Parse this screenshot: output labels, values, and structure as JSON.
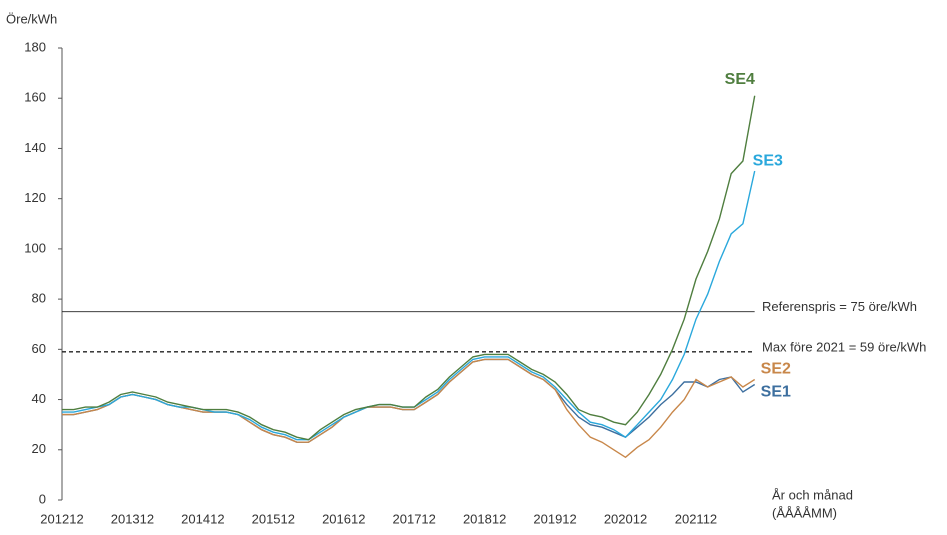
{
  "chart_data": {
    "type": "line",
    "ylabel": "Öre/kWh",
    "xlabel": [
      "År och månad",
      "(ÅÅÅÅMM)"
    ],
    "categories": [
      "201212",
      null,
      null,
      null,
      null,
      null,
      "201312",
      null,
      null,
      null,
      null,
      null,
      "201412",
      null,
      null,
      null,
      null,
      null,
      "201512",
      null,
      null,
      null,
      null,
      null,
      "201612",
      null,
      null,
      null,
      null,
      null,
      "201712",
      null,
      null,
      null,
      null,
      null,
      "201812",
      null,
      null,
      null,
      null,
      null,
      "201912",
      null,
      null,
      null,
      null,
      null,
      "202012",
      null,
      null,
      null,
      null,
      null,
      "202112",
      null,
      null,
      null,
      null,
      null
    ],
    "ylim": [
      0,
      180
    ],
    "yticks": [
      0,
      20,
      40,
      60,
      80,
      100,
      120,
      140,
      160,
      180
    ],
    "reference_lines": [
      {
        "value": 75,
        "label": "Referenspris = 75 öre/kWh",
        "style": "solid"
      },
      {
        "value": 59,
        "label": "Max före 2021 = 59 öre/kWh",
        "style": "dashed"
      }
    ],
    "series": [
      {
        "name": "SE1",
        "color": "#3d6f9f",
        "values": [
          34,
          34,
          35,
          36,
          38,
          41,
          42,
          41,
          40,
          38,
          37,
          36,
          35,
          35,
          35,
          34,
          31,
          28,
          26,
          25,
          23,
          23,
          26,
          29,
          33,
          35,
          37,
          37,
          37,
          36,
          36,
          39,
          42,
          47,
          51,
          55,
          56,
          56,
          56,
          53,
          50,
          48,
          44,
          38,
          33,
          30,
          29,
          27,
          25,
          29,
          33,
          38,
          42,
          47,
          47,
          45,
          48,
          49,
          43,
          46
        ]
      },
      {
        "name": "SE2",
        "color": "#c8874a",
        "values": [
          34,
          34,
          35,
          36,
          38,
          41,
          42,
          41,
          40,
          38,
          37,
          36,
          35,
          35,
          35,
          34,
          31,
          28,
          26,
          25,
          23,
          23,
          26,
          29,
          33,
          35,
          37,
          37,
          37,
          36,
          36,
          39,
          42,
          47,
          51,
          55,
          56,
          56,
          56,
          53,
          50,
          48,
          44,
          36,
          30,
          25,
          23,
          20,
          17,
          21,
          24,
          29,
          35,
          40,
          48,
          45,
          47,
          49,
          45,
          48
        ]
      },
      {
        "name": "SE3",
        "color": "#2aa8dc",
        "values": [
          35,
          35,
          36,
          37,
          38,
          41,
          42,
          41,
          40,
          38,
          37,
          37,
          36,
          35,
          35,
          34,
          32,
          29,
          27,
          26,
          24,
          24,
          27,
          30,
          33,
          35,
          37,
          38,
          38,
          37,
          37,
          40,
          43,
          48,
          52,
          56,
          57,
          57,
          57,
          54,
          51,
          49,
          45,
          40,
          35,
          31,
          30,
          28,
          25,
          30,
          35,
          40,
          48,
          58,
          72,
          82,
          95,
          106,
          110,
          131
        ]
      },
      {
        "name": "SE4",
        "color": "#4f7e3f",
        "values": [
          36,
          36,
          37,
          37,
          39,
          42,
          43,
          42,
          41,
          39,
          38,
          37,
          36,
          36,
          36,
          35,
          33,
          30,
          28,
          27,
          25,
          24,
          28,
          31,
          34,
          36,
          37,
          38,
          38,
          37,
          37,
          41,
          44,
          49,
          53,
          57,
          58,
          58,
          58,
          55,
          52,
          50,
          47,
          42,
          36,
          34,
          33,
          31,
          30,
          35,
          42,
          50,
          60,
          72,
          88,
          99,
          112,
          130,
          135,
          161
        ]
      }
    ]
  }
}
